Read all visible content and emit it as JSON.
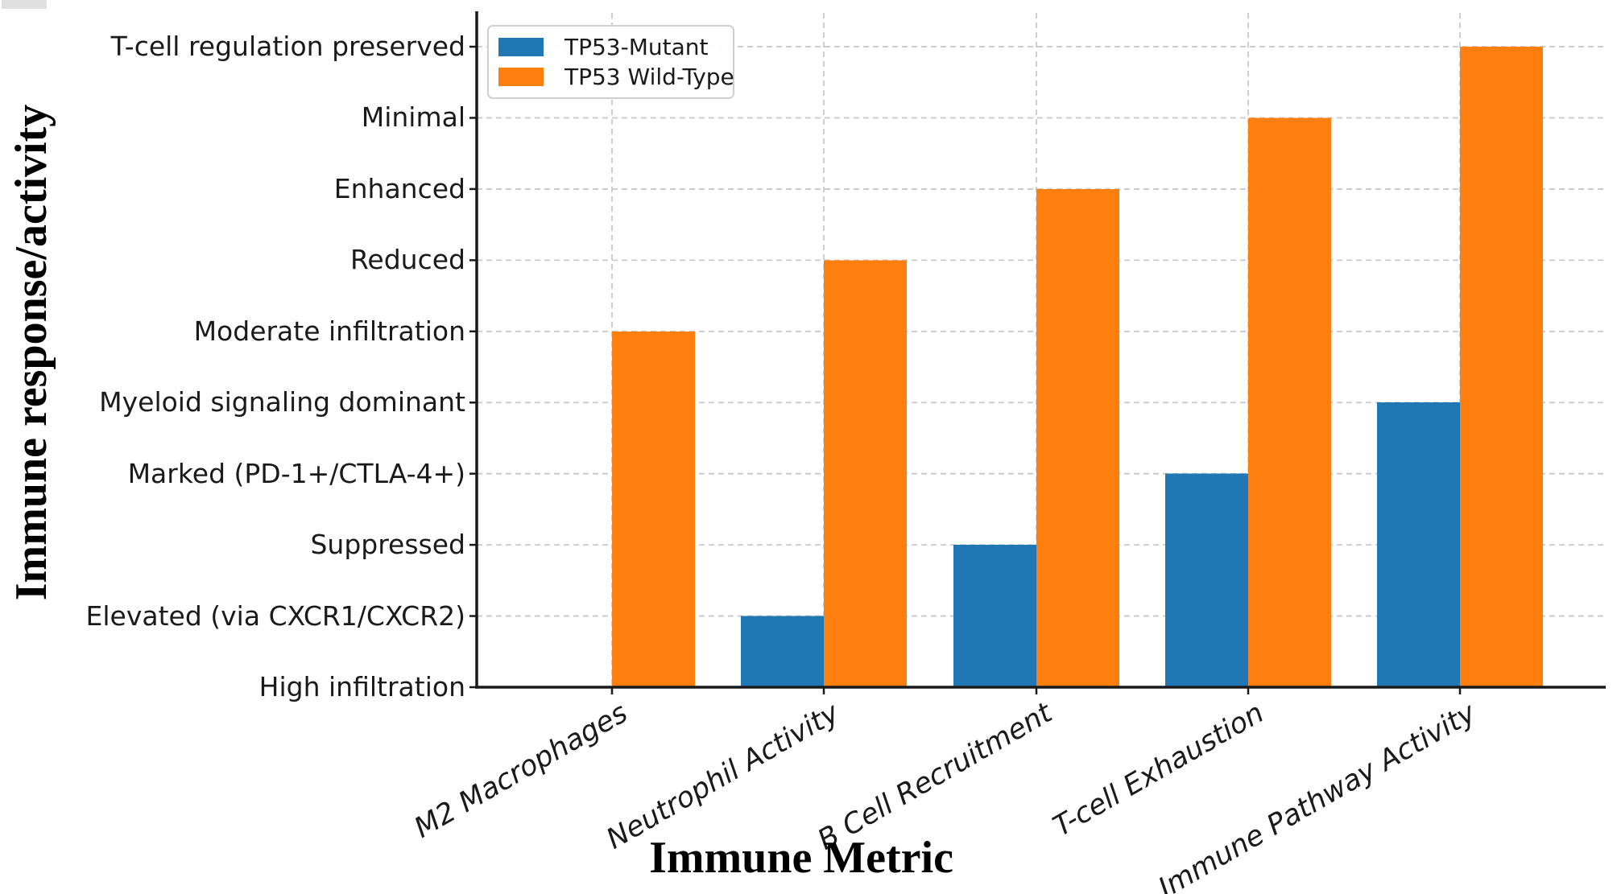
{
  "chart_data": {
    "type": "bar",
    "title": "",
    "xlabel": "Immune Metric",
    "ylabel": "Immune response/activity",
    "categories": [
      "M2 Macrophages",
      "Neutrophil Activity",
      "B Cell Recruitment",
      "T-cell Exhaustion",
      "Immune Pathway Activity"
    ],
    "y_tick_labels": [
      "High infiltration",
      "Elevated (via CXCR1/CXCR2)",
      "Suppressed",
      "Marked (PD-1+/CTLA-4+)",
      "Myeloid signaling dominant",
      "Moderate infiltration",
      "Reduced",
      "Enhanced",
      "Minimal",
      "T-cell regulation preserved"
    ],
    "value_encoding": "numeric values are indices into y_tick_labels (0 = bottom)",
    "series": [
      {
        "name": "TP53-Mutant",
        "color": "#1f77b4",
        "values": [
          0,
          1,
          2,
          3,
          4
        ]
      },
      {
        "name": "TP53 Wild-Type",
        "color": "#ff7f0e",
        "values": [
          5,
          6,
          7,
          8,
          9
        ]
      }
    ],
    "ylim": [
      0,
      9.48
    ],
    "grid": "horizontal and vertical, light gray dashed, behind bars",
    "legend_position": "upper left",
    "background": "#ffffff"
  }
}
